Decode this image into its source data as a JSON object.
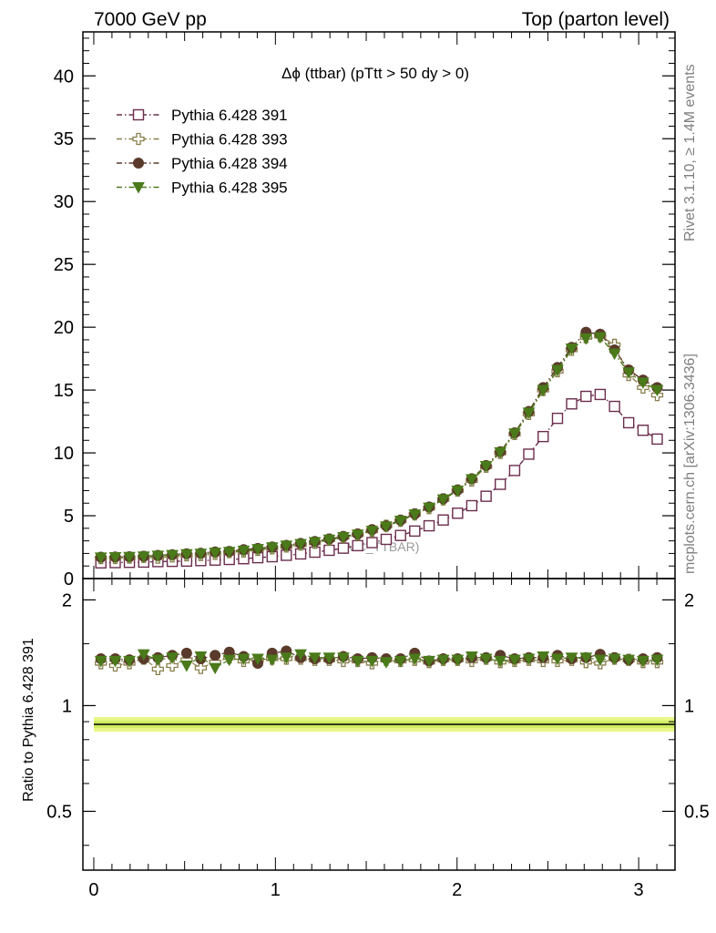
{
  "header": {
    "left": "7000 GeV pp",
    "right": "Top (parton level)"
  },
  "side_labels": {
    "rivet": "Rivet 3.1.10, ≥ 1.4M events",
    "mcplots": "mcplots.cern.ch [arXiv:1306.3436]"
  },
  "chart_data": [
    {
      "type": "line",
      "title": "Δϕ (ttbar) (pTtt > 50 dy > 0)",
      "watermark": "(MC_TTBAR)",
      "xlabel": "",
      "ylabel": "",
      "xlim": [
        -0.06,
        3.2
      ],
      "ylim": [
        0,
        43.5
      ],
      "x_ticks": [
        0,
        1,
        2,
        3
      ],
      "y_ticks": [
        0,
        5,
        10,
        15,
        20,
        25,
        30,
        35,
        40
      ],
      "legend_position": "top-left",
      "x": [
        0.039,
        0.118,
        0.196,
        0.275,
        0.353,
        0.432,
        0.511,
        0.589,
        0.668,
        0.746,
        0.825,
        0.903,
        0.982,
        1.06,
        1.139,
        1.217,
        1.296,
        1.374,
        1.453,
        1.532,
        1.61,
        1.689,
        1.767,
        1.846,
        1.924,
        2.003,
        2.081,
        2.16,
        2.238,
        2.317,
        2.395,
        2.474,
        2.553,
        2.631,
        2.71,
        2.788,
        2.867,
        2.945,
        3.024,
        3.102
      ],
      "series": [
        {
          "name": "Pythia 6.428 391",
          "color": "#6b2d4d",
          "marker": "open-square",
          "values": [
            1.25,
            1.27,
            1.29,
            1.31,
            1.35,
            1.37,
            1.39,
            1.43,
            1.47,
            1.52,
            1.58,
            1.66,
            1.74,
            1.85,
            1.96,
            2.1,
            2.25,
            2.42,
            2.62,
            2.86,
            3.12,
            3.43,
            3.78,
            4.2,
            4.66,
            5.2,
            5.8,
            6.55,
            7.5,
            8.6,
            9.9,
            11.3,
            12.75,
            13.9,
            14.5,
            14.65,
            13.7,
            12.4,
            11.8,
            11.1
          ]
        },
        {
          "name": "Pythia 6.428 393",
          "color": "#8a7f4e",
          "marker": "open-cross",
          "values": [
            1.62,
            1.63,
            1.66,
            1.72,
            1.66,
            1.76,
            1.85,
            1.87,
            1.96,
            2.1,
            2.15,
            2.28,
            2.4,
            2.55,
            2.7,
            2.85,
            3.1,
            3.3,
            3.5,
            3.8,
            4.2,
            4.6,
            5.1,
            5.6,
            6.3,
            7.0,
            7.8,
            8.9,
            10.0,
            11.5,
            13.1,
            15.0,
            16.5,
            18.2,
            19.2,
            19.3,
            18.6,
            16.2,
            15.2,
            14.6
          ]
        },
        {
          "name": "Pythia 6.428 394",
          "color": "#5a3a2a",
          "marker": "filled-circle",
          "values": [
            1.7,
            1.72,
            1.74,
            1.78,
            1.85,
            1.9,
            1.98,
            2.02,
            2.12,
            2.16,
            2.3,
            2.4,
            2.52,
            2.65,
            2.8,
            2.95,
            3.15,
            3.35,
            3.55,
            3.9,
            4.2,
            4.65,
            5.15,
            5.7,
            6.35,
            7.05,
            7.95,
            9.0,
            10.1,
            11.6,
            13.3,
            15.2,
            16.8,
            18.4,
            19.6,
            19.45,
            18.2,
            16.6,
            15.8,
            15.2
          ]
        },
        {
          "name": "Pythia 6.428 395",
          "color": "#4a7a1a",
          "marker": "filled-triangle-down",
          "values": [
            1.68,
            1.7,
            1.72,
            1.76,
            1.82,
            1.88,
            1.94,
            1.98,
            2.06,
            2.12,
            2.22,
            2.35,
            2.48,
            2.62,
            2.75,
            2.9,
            3.1,
            3.3,
            3.5,
            3.8,
            4.15,
            4.6,
            5.1,
            5.65,
            6.3,
            7.0,
            7.9,
            8.95,
            10.05,
            11.55,
            13.2,
            15.0,
            16.6,
            18.3,
            19.1,
            19.2,
            17.9,
            16.4,
            15.6,
            15.0
          ]
        }
      ]
    },
    {
      "type": "line",
      "ylabel": "Ratio to Pythia 6.428 391",
      "xlim": [
        -0.06,
        3.2
      ],
      "ylim": [
        0.34,
        2.3
      ],
      "log_y": true,
      "y_ticks": [
        0.5,
        1,
        2
      ],
      "x_ticks": [
        0,
        1,
        2,
        3
      ],
      "reference": "Pythia 6.428 391",
      "ratio_series": [
        {
          "name": "Pythia 6.428 393",
          "values": [
            1.32,
            1.3,
            1.32,
            1.36,
            1.27,
            1.3,
            1.35,
            1.28,
            1.33,
            1.37,
            1.34,
            1.35,
            1.36,
            1.36,
            1.36,
            1.35,
            1.35,
            1.34,
            1.34,
            1.32,
            1.35,
            1.34,
            1.35,
            1.33,
            1.35,
            1.35,
            1.34,
            1.36,
            1.33,
            1.34,
            1.35,
            1.34,
            1.34,
            1.35,
            1.33,
            1.32,
            1.36,
            1.35,
            1.33,
            1.33
          ]
        },
        {
          "name": "Pythia 6.428 394",
          "values": [
            1.36,
            1.36,
            1.35,
            1.36,
            1.37,
            1.39,
            1.41,
            1.36,
            1.39,
            1.42,
            1.38,
            1.32,
            1.41,
            1.43,
            1.37,
            1.36,
            1.36,
            1.38,
            1.36,
            1.37,
            1.36,
            1.36,
            1.41,
            1.34,
            1.36,
            1.36,
            1.37,
            1.37,
            1.39,
            1.36,
            1.37,
            1.37,
            1.39,
            1.36,
            1.37,
            1.4,
            1.37,
            1.35,
            1.36,
            1.37
          ]
        },
        {
          "name": "Pythia 6.428 395",
          "values": [
            1.34,
            1.34,
            1.34,
            1.4,
            1.35,
            1.37,
            1.3,
            1.38,
            1.28,
            1.35,
            1.36,
            1.36,
            1.35,
            1.37,
            1.4,
            1.37,
            1.37,
            1.37,
            1.34,
            1.34,
            1.33,
            1.34,
            1.36,
            1.34,
            1.35,
            1.35,
            1.38,
            1.36,
            1.34,
            1.35,
            1.36,
            1.38,
            1.36,
            1.37,
            1.37,
            1.35,
            1.36,
            1.35,
            1.34,
            1.35
          ]
        }
      ]
    }
  ]
}
